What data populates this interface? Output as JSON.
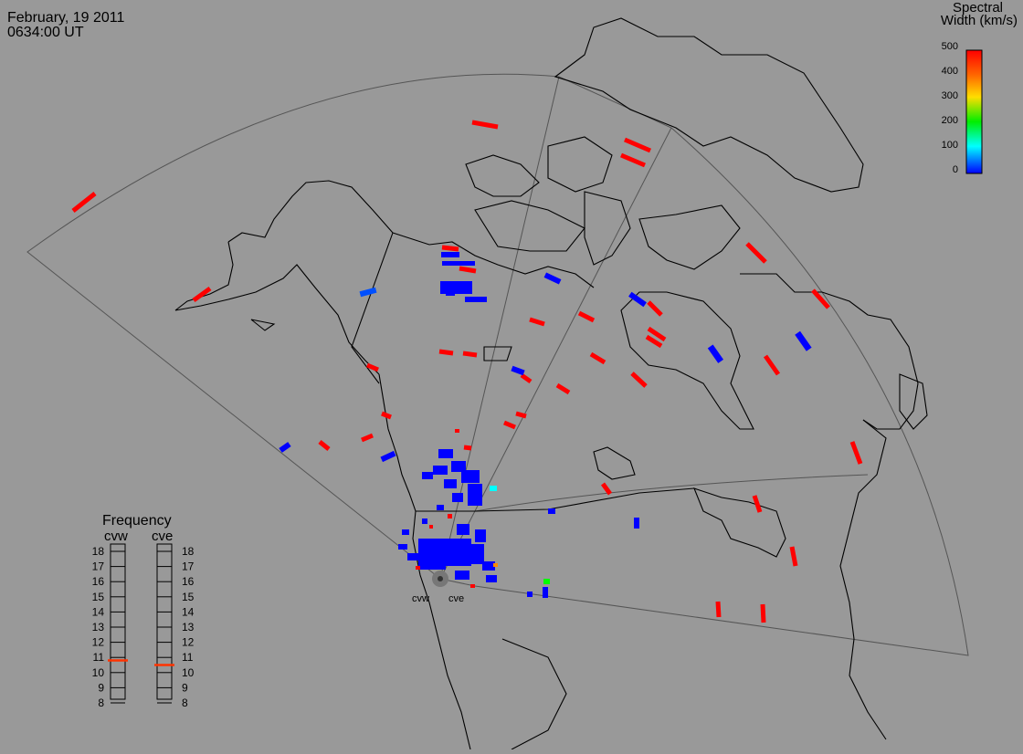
{
  "header": {
    "date": "February, 19 2011",
    "time": "0634:00 UT"
  },
  "colorbar": {
    "title_line1": "Spectral",
    "title_line2": "Width (km/s)",
    "ticks": [
      "500",
      "400",
      "300",
      "200",
      "100",
      "0"
    ],
    "colors": [
      "#ff0000",
      "#ffaa00",
      "#ffff00",
      "#00ff00",
      "#00ffff",
      "#0000ff"
    ]
  },
  "radars": {
    "names": [
      "cvw",
      "cve"
    ]
  },
  "frequency_panel": {
    "title": "Frequency",
    "left_label": "cvw",
    "right_label": "cve",
    "ticks": [
      "18",
      "17",
      "16",
      "15",
      "14",
      "13",
      "12",
      "11",
      "10",
      "9",
      "8"
    ],
    "cvw_value_mhz": 10.8,
    "cve_value_mhz": 10.5,
    "marker_color": "#ff3300"
  },
  "map": {
    "background_color": "#999999",
    "coastline_color": "#000000",
    "fov_color": "#555555"
  }
}
